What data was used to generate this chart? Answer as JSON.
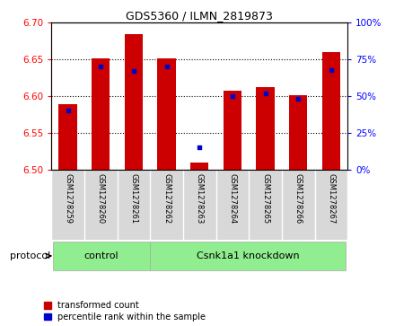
{
  "title": "GDS5360 / ILMN_2819873",
  "samples": [
    "GSM1278259",
    "GSM1278260",
    "GSM1278261",
    "GSM1278262",
    "GSM1278263",
    "GSM1278264",
    "GSM1278265",
    "GSM1278266",
    "GSM1278267"
  ],
  "red_values": [
    6.589,
    6.651,
    6.685,
    6.651,
    6.509,
    6.607,
    6.612,
    6.601,
    6.66
  ],
  "blue_values": [
    40,
    70,
    67,
    70,
    15,
    50,
    52,
    48,
    68
  ],
  "ylim_left": [
    6.5,
    6.7
  ],
  "ylim_right": [
    0,
    100
  ],
  "yticks_left": [
    6.5,
    6.55,
    6.6,
    6.65,
    6.7
  ],
  "yticks_right": [
    0,
    25,
    50,
    75,
    100
  ],
  "bar_color": "#cc0000",
  "dot_color": "#0000cc",
  "bar_bottom": 6.5,
  "control_count": 3,
  "control_label": "control",
  "knockdown_label": "Csnk1a1 knockdown",
  "protocol_label": "protocol",
  "legend_red": "transformed count",
  "legend_blue": "percentile rank within the sample",
  "bg_color": "#d8d8d8",
  "plot_bg": "#ffffff",
  "green_color": "#90ee90",
  "bar_width": 0.55
}
